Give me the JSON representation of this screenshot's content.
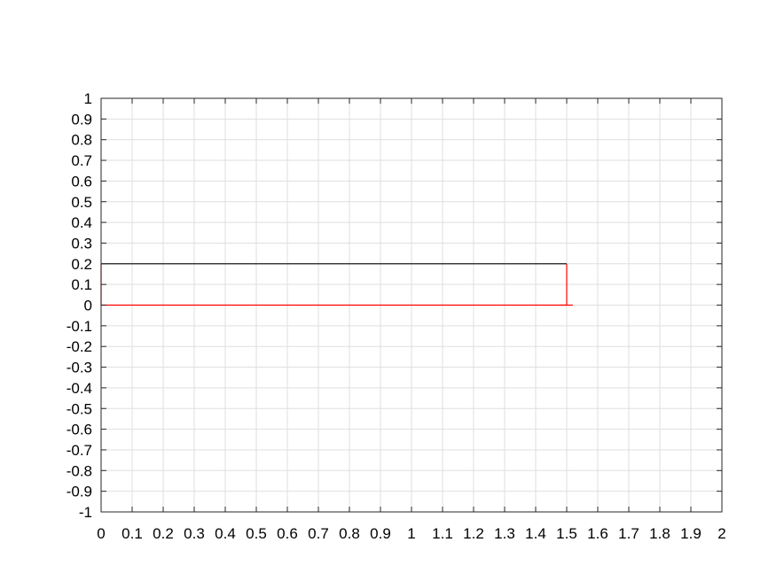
{
  "chart_data": {
    "type": "line",
    "title": "",
    "xlabel": "",
    "ylabel": "",
    "xlim": [
      0,
      2
    ],
    "ylim": [
      -1,
      1
    ],
    "grid": true,
    "x_ticks": [
      0,
      0.1,
      0.2,
      0.3,
      0.4,
      0.5,
      0.6,
      0.7,
      0.8,
      0.9,
      1,
      1.1,
      1.2,
      1.3,
      1.4,
      1.5,
      1.6,
      1.7,
      1.8,
      1.9,
      2
    ],
    "x_tick_labels": [
      "0",
      "0.1",
      "0.2",
      "0.3",
      "0.4",
      "0.5",
      "0.6",
      "0.7",
      "0.8",
      "0.9",
      "1",
      "1.1",
      "1.2",
      "1.3",
      "1.4",
      "1.5",
      "1.6",
      "1.7",
      "1.8",
      "1.9",
      "2"
    ],
    "y_ticks": [
      1,
      0.9,
      0.8,
      0.7,
      0.6,
      0.5,
      0.4,
      0.3,
      0.2,
      0.1,
      0,
      -0.1,
      -0.2,
      -0.3,
      -0.4,
      -0.5,
      -0.6,
      -0.7,
      -0.8,
      -0.9,
      -1
    ],
    "y_tick_labels": [
      "1",
      "0.9",
      "0.8",
      "0.7",
      "0.6",
      "0.5",
      "0.4",
      "0.3",
      "0.2",
      "0.1",
      "0",
      "-0.1",
      "-0.2",
      "-0.3",
      "-0.4",
      "-0.5",
      "-0.6",
      "-0.7",
      "-0.8",
      "-0.9",
      "-1"
    ],
    "series": [
      {
        "color": "#ff0000",
        "x": [
          1.5,
          1.5,
          0,
          0
        ],
        "y": [
          0.2,
          0,
          0,
          0.2
        ]
      },
      {
        "color": "#ff0000",
        "x": [
          1.48,
          1.52
        ],
        "y": [
          0,
          0
        ]
      },
      {
        "color": "#000000",
        "x": [
          0,
          1.5
        ],
        "y": [
          0.2,
          0.2
        ]
      }
    ]
  }
}
